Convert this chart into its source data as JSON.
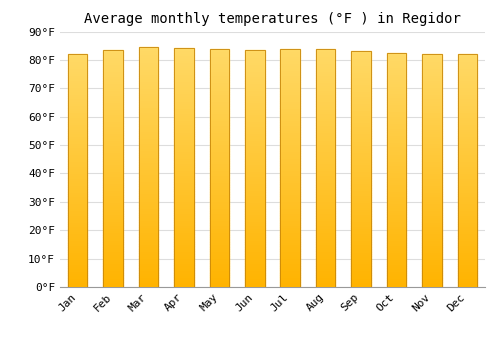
{
  "title": "Average monthly temperatures (°F ) in Regidor",
  "months": [
    "Jan",
    "Feb",
    "Mar",
    "Apr",
    "May",
    "Jun",
    "Jul",
    "Aug",
    "Sep",
    "Oct",
    "Nov",
    "Dec"
  ],
  "values": [
    82.0,
    83.5,
    84.5,
    84.2,
    83.8,
    83.5,
    84.0,
    83.8,
    83.2,
    82.5,
    82.0,
    82.0
  ],
  "ylim": [
    0,
    90
  ],
  "yticks": [
    0,
    10,
    20,
    30,
    40,
    50,
    60,
    70,
    80,
    90
  ],
  "ytick_labels": [
    "0°F",
    "10°F",
    "20°F",
    "30°F",
    "40°F",
    "50°F",
    "60°F",
    "70°F",
    "80°F",
    "90°F"
  ],
  "bar_color_bottom": "#FFB300",
  "bar_color_top": "#FFD966",
  "bar_edge_color": "#C8860A",
  "background_color": "#FFFFFF",
  "grid_color": "#DDDDDD",
  "title_fontsize": 10,
  "tick_fontsize": 8,
  "font_family": "monospace",
  "bar_width": 0.55
}
